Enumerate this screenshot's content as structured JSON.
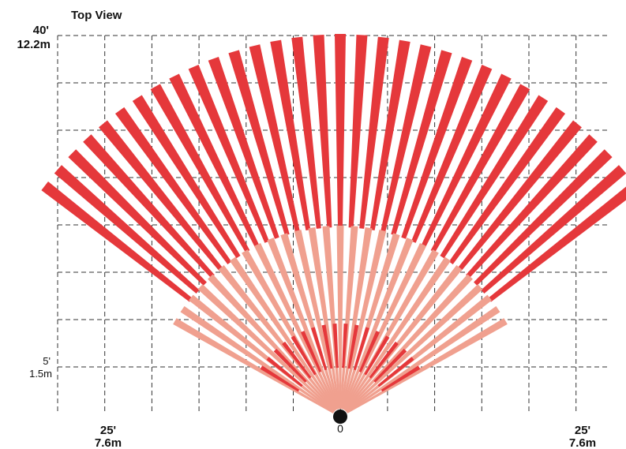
{
  "title": "Top View",
  "labels": {
    "top_ft": "40'",
    "top_m": "12.2m",
    "near_ft": "5'",
    "near_m": "1.5m",
    "left_ft": "25'",
    "left_m": "7.6m",
    "center": "0",
    "right_ft": "25'",
    "right_m": "7.6m"
  },
  "colors": {
    "far_zone": "#e5383b",
    "mid_zone": "#f0a08f",
    "near_zone": "#e5383b",
    "sensor": "#111111",
    "grid": "#333333"
  },
  "icons": {
    "sensor": "sensor-dot-icon"
  }
}
